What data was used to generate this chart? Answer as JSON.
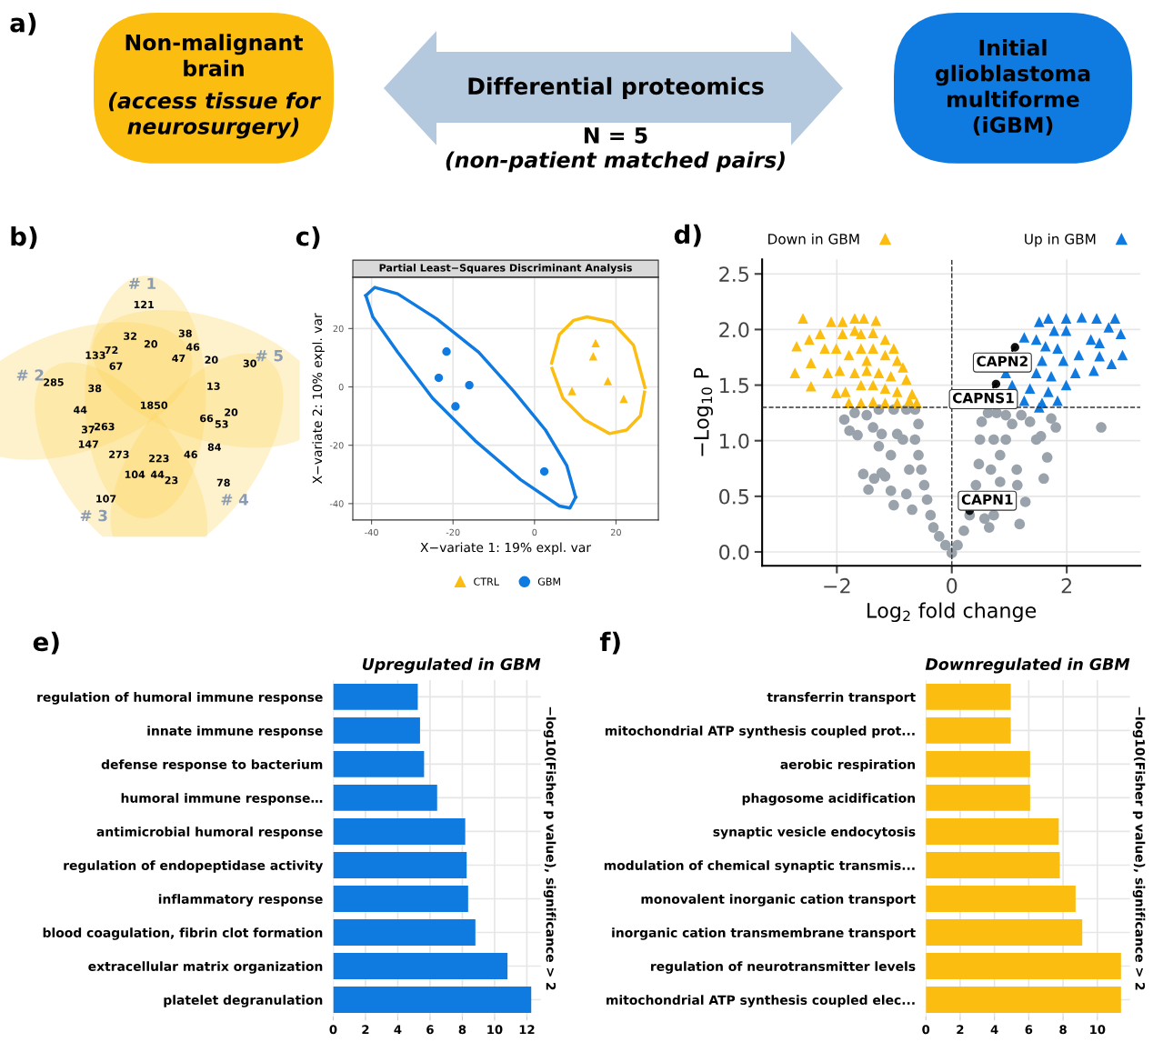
{
  "chart_data": [
    {
      "type": "other",
      "annotations": [
        "a)",
        "Non-malignant\nbrain",
        "(access tissue for\nneurosurgery)",
        "Differential proteomics",
        "N = 5",
        "(non-patient matched pairs)",
        "Initial\nglioblastoma\nmultiforme\n(iGBM)"
      ]
    },
    {
      "type": "other",
      "annotations": [
        "b)",
        "# 1",
        "# 2",
        "# 3",
        "# 4",
        "# 5",
        "121",
        "32",
        "38",
        "20",
        "46",
        "133",
        "72",
        "47",
        "20",
        "30",
        "67",
        "285",
        "38",
        "13",
        "1850",
        "44",
        "20",
        "66",
        "53",
        "37",
        "263",
        "147",
        "84",
        "273",
        "223",
        "46",
        "104",
        "44",
        "23",
        "78",
        "107"
      ]
    },
    {
      "type": "scatter",
      "title": "Partial Least−Squares Discriminant Analysis",
      "xlabel": "X−variate 1: 19% expl. var",
      "ylabel": "X−variate 2: 10% expl. var",
      "annotations": [
        "c)"
      ],
      "xlim": [
        -44.6,
        30.4
      ],
      "ylim": [
        -45.6,
        37.6
      ],
      "xticks": [
        -40,
        -20,
        0,
        20
      ],
      "yticks": [
        -40,
        -20,
        0,
        20
      ],
      "grid": true,
      "legend": "bottom",
      "series": [
        {
          "name": "CTRL",
          "color": "#fbbd0f",
          "marker": "triangle",
          "x": [
            15.0,
            14.4,
            18.0,
            9.2,
            21.9
          ],
          "values": [
            15.0,
            10.5,
            2.0,
            -1.4,
            -4.1
          ]
        },
        {
          "name": "GBM",
          "color": "#0f7ae0",
          "marker": "circle",
          "x": [
            -21.6,
            -23.5,
            -16.0,
            -19.4,
            2.4
          ],
          "values": [
            12.1,
            3.1,
            0.6,
            -6.7,
            -29.0
          ]
        },
        {
          "type": "line",
          "color": "#fbbd0f",
          "x": [
            4.2,
            6.1,
            9.6,
            12.9,
            19.1,
            24.3,
            27.1
          ],
          "values": [
            8.2,
            17.9,
            22.8,
            24.0,
            22.2,
            14.3,
            -0.2
          ]
        },
        {
          "type": "line",
          "color": "#fbbd0f",
          "x": [
            4.3,
            7.0,
            12.2,
            18.4,
            22.6,
            26.0,
            27.0
          ],
          "values": [
            6.3,
            -3.9,
            -11.2,
            -16.0,
            -14.8,
            -9.9,
            -1.8
          ]
        },
        {
          "type": "line",
          "color": "#0f7ae0",
          "x": [
            -41.4,
            -39.2,
            -33.6,
            -24.1,
            -13.7,
            -5.1,
            2.7,
            7.9,
            10.1
          ],
          "values": [
            31.3,
            34.1,
            31.9,
            23.4,
            11.9,
            -1.5,
            -14.8,
            -26.9,
            -37.8
          ]
        },
        {
          "type": "line",
          "color": "#0f7ae0",
          "x": [
            -41.4,
            -39.7,
            -33.6,
            -25.0,
            -14.6,
            -3.4,
            6.1,
            8.7,
            10.1
          ],
          "values": [
            31.3,
            24.0,
            11.9,
            -3.9,
            -18.4,
            -31.8,
            -40.8,
            -41.5,
            -37.8
          ]
        }
      ]
    },
    {
      "type": "scatter",
      "xlabel": "Log$_{2}$ fold change",
      "ylabel": "−Log$_{10}$ P",
      "xlim": [
        -3.3,
        3.28
      ],
      "ylim": [
        -0.125,
        2.63
      ],
      "xticks": [
        {
          "value": -2,
          "label": "−2"
        },
        0,
        2
      ],
      "yticks": [
        {
          "value": 0,
          "label": "0.0"
        },
        {
          "value": 0.5,
          "label": "0.5"
        },
        {
          "value": 1,
          "label": "1.0"
        },
        {
          "value": 1.5,
          "label": "1.5"
        },
        {
          "value": 2,
          "label": "2.0"
        },
        {
          "value": 2.5,
          "label": "2.5"
        }
      ],
      "grid": true,
      "legend": "top",
      "ref_lines": [
        {
          "axis": "x",
          "value": 0,
          "color": "#333333",
          "line_style": "dashed"
        },
        {
          "axis": "y",
          "value": 1.3,
          "color": "#333333",
          "line_style": "dashed"
        }
      ],
      "annotations": [
        "d)",
        {
          "text": "CAPN2",
          "x": 1.1,
          "y": 1.84
        },
        {
          "text": "CAPNS1",
          "x": 0.77,
          "y": 1.51
        },
        {
          "text": "CAPN1",
          "x": 0.31,
          "y": 0.37
        }
      ],
      "series": [
        {
          "color": "#9aa3ab",
          "marker": "circle",
          "x": [
            0.0,
            -0.11,
            -0.22,
            -0.32,
            -0.37,
            -0.43,
            -0.48,
            -0.53,
            -0.58,
            -0.64,
            -0.58,
            -0.64,
            -0.79,
            -0.85,
            -0.74,
            -0.79,
            -0.69,
            -1.01,
            -1.06,
            -1.16,
            -1.06,
            -0.95,
            -1.22,
            -1.27,
            -1.22,
            -1.35,
            -1.45,
            -1.54,
            -1.37,
            -1.48,
            -1.64,
            -1.78,
            -1.87,
            -1.69,
            -1.27,
            -1.01,
            0.1,
            0.21,
            0.31,
            0.42,
            0.47,
            0.49,
            0.52,
            0.63,
            0.73,
            0.68,
            0.57,
            0.65,
            0.84,
            0.94,
            1.05,
            1.21,
            1.36,
            1.47,
            1.55,
            1.73,
            1.81,
            2.6,
            1.66,
            1.6,
            1.13,
            1.14,
            1.28,
            1.18,
            0.73,
            0.84,
            0.94,
            0.78
          ],
          "values": [
            -0.01,
            0.06,
            0.14,
            0.22,
            0.33,
            0.47,
            0.6,
            0.74,
            0.87,
            1.01,
            1.15,
            1.28,
            1.28,
            1.01,
            0.74,
            0.52,
            0.38,
            0.42,
            0.55,
            0.68,
            0.87,
            1.06,
            1.06,
            0.95,
            0.71,
            0.66,
            0.56,
            0.7,
            1.12,
            1.23,
            1.05,
            1.09,
            1.19,
            1.25,
            1.28,
            1.28,
            0.06,
            0.19,
            0.33,
            0.6,
            0.79,
            1.01,
            1.17,
            1.25,
            1.01,
            0.74,
            0.3,
            0.22,
            0.87,
            1.01,
            1.15,
            1.23,
            1.17,
            1.01,
            1.04,
            1.2,
            1.12,
            1.12,
            0.85,
            0.66,
            0.74,
            0.6,
            0.45,
            0.25,
            0.33,
            0.63,
            1.23,
            1.25
          ]
        },
        {
          "name": "Down in GBM",
          "color": "#fbbd0f",
          "marker": "triangle",
          "x": [
            -2.59,
            -2.7,
            -2.73,
            -2.45,
            -2.45,
            -2.48,
            -2.29,
            -2.16,
            -2.1,
            -2.01,
            -1.9,
            -1.69,
            -1.53,
            -1.32,
            -1.9,
            -1.69,
            -1.58,
            -1.37,
            -1.16,
            -1.01,
            -2.01,
            -1.79,
            -1.58,
            -1.37,
            -1.16,
            -0.95,
            -0.85,
            -1.95,
            -1.69,
            -1.48,
            -1.27,
            -1.06,
            -0.79,
            -1.85,
            -1.58,
            -1.37,
            -1.16,
            -0.95,
            -0.69,
            -1.79,
            -1.58,
            -1.37,
            -1.16,
            -0.95,
            -0.74,
            -0.61,
            -1.48,
            -2.21
          ],
          "values": [
            2.1,
            1.85,
            1.61,
            1.49,
            1.7,
            1.91,
            1.96,
            1.61,
            2.07,
            1.43,
            2.07,
            2.1,
            2.1,
            2.08,
            1.96,
            1.99,
            1.96,
            1.97,
            1.91,
            1.83,
            1.83,
            1.77,
            1.83,
            1.83,
            1.77,
            1.72,
            1.66,
            1.63,
            1.61,
            1.63,
            1.61,
            1.58,
            1.55,
            1.44,
            1.5,
            1.5,
            1.47,
            1.44,
            1.42,
            1.34,
            1.34,
            1.35,
            1.34,
            1.34,
            1.36,
            1.34,
            1.72,
            1.83
          ]
        },
        {
          "name": "Up in GBM",
          "color": "#0f7ae0",
          "marker": "triangle",
          "x": [
            1.52,
            1.68,
            1.99,
            2.26,
            2.52,
            2.84,
            2.94,
            2.97,
            2.78,
            2.57,
            2.47,
            2.21,
            2.42,
            1.99,
            1.78,
            1.84,
            1.63,
            1.47,
            1.26,
            1.57,
            1.94,
            2.15,
            1.99,
            1.73,
            1.47,
            0.94,
            1.05,
            1.36,
            1.68,
            1.84,
            1.57,
            1.26,
            1.52,
            2.57,
            2.73
          ],
          "values": [
            2.07,
            2.1,
            2.1,
            2.11,
            2.1,
            2.1,
            1.96,
            1.77,
            1.69,
            1.76,
            1.63,
            1.77,
            1.91,
            1.99,
            1.99,
            1.83,
            1.85,
            1.91,
            1.93,
            1.72,
            1.72,
            1.61,
            1.5,
            1.58,
            1.61,
            1.61,
            1.5,
            1.47,
            1.44,
            1.36,
            1.34,
            1.36,
            1.3,
            1.88,
            2.02
          ]
        },
        {
          "color": "#111111",
          "marker": "circle",
          "x": [
            1.1,
            0.77,
            0.31
          ],
          "values": [
            1.84,
            1.51,
            0.37
          ]
        }
      ]
    },
    {
      "type": "bar",
      "orientation": "horizontal",
      "title": "Upregulated in GBM",
      "y2label": "−log10(Fisher p value), significance > 2",
      "annotations": [
        "e)"
      ],
      "categories": [
        "regulation of humoral immune response",
        "innate immune response",
        "defense response to bacterium",
        "humoral immune response…",
        "antimicrobial humoral response",
        "regulation of endopeptidase activity",
        "inflammatory response",
        "blood coagulation, fibrin clot formation",
        "extracellular matrix organization",
        "platelet degranulation"
      ],
      "values": [
        5.24,
        5.38,
        5.63,
        6.44,
        8.18,
        8.27,
        8.36,
        8.81,
        10.8,
        12.27
      ],
      "color": "#0f7ae0",
      "xlim": [
        0,
        12.86
      ],
      "xticks": [
        0,
        2,
        4,
        6,
        8,
        10,
        12
      ],
      "grid": true
    },
    {
      "type": "bar",
      "orientation": "horizontal",
      "title": "Downregulated in GBM",
      "y2label": "−log10(Fisher p value), significance > 2",
      "annotations": [
        "f)"
      ],
      "categories": [
        "transferrin transport",
        "mitochondrial ATP synthesis coupled prot...",
        "aerobic respiration",
        "phagosome acidification",
        "synaptic vesicle endocytosis",
        "modulation of chemical synaptic transmis...",
        "monovalent inorganic cation transport",
        "inorganic cation transmembrane transport",
        "regulation of neurotransmitter levels",
        "mitochondrial ATP synthesis coupled elec..."
      ],
      "values": [
        4.95,
        4.95,
        6.08,
        6.08,
        7.75,
        7.81,
        8.73,
        9.12,
        11.38,
        11.38
      ],
      "color": "#fbbd0f",
      "xlim": [
        0,
        11.9
      ],
      "xticks": [
        0,
        2,
        4,
        6,
        8,
        10
      ],
      "grid": true
    }
  ]
}
